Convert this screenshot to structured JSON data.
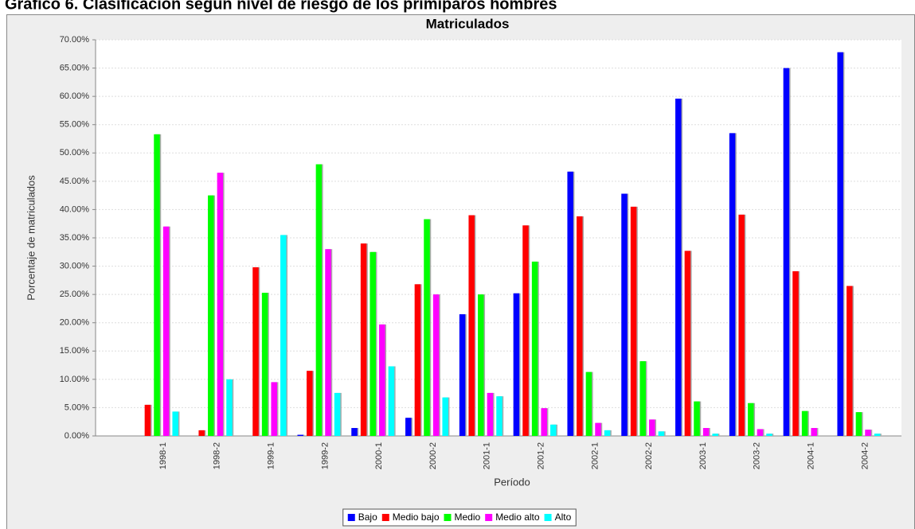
{
  "caption": "Gráfico 6. Clasificación según nivel de riesgo de los primíparos hombres",
  "chart_data": {
    "type": "bar",
    "title": "Matriculados",
    "x_label": "Período",
    "y_label": "Porcentaje de matriculados",
    "categories": [
      "1998-1",
      "1998-2",
      "1999-1",
      "1999-2",
      "2000-1",
      "2000-2",
      "2001-1",
      "2001-2",
      "2002-1",
      "2002-2",
      "2003-1",
      "2003-2",
      "2004-1",
      "2004-2"
    ],
    "series": [
      {
        "name": "Bajo",
        "color": "#0000ff",
        "values": [
          0,
          0,
          0,
          0.2,
          1.4,
          3.2,
          21.5,
          25.2,
          46.7,
          42.8,
          59.6,
          53.5,
          65,
          67.8
        ]
      },
      {
        "name": "Medio bajo",
        "color": "#ff0000",
        "values": [
          5.5,
          1.0,
          29.8,
          11.5,
          34,
          26.8,
          39,
          37.2,
          38.8,
          40.5,
          32.7,
          39.1,
          29.1,
          26.5
        ]
      },
      {
        "name": "Medio",
        "color": "#00ff00",
        "values": [
          53.3,
          42.5,
          25.3,
          48,
          32.5,
          38.3,
          25,
          30.8,
          11.3,
          13.2,
          6.1,
          5.8,
          4.4,
          4.2
        ]
      },
      {
        "name": "Medio alto",
        "color": "#ff00ff",
        "values": [
          37,
          46.5,
          9.5,
          33,
          19.7,
          25,
          7.6,
          4.9,
          2.3,
          2.9,
          1.4,
          1.2,
          1.4,
          1.1
        ]
      },
      {
        "name": "Alto",
        "color": "#00ffff",
        "values": [
          4.3,
          10,
          35.5,
          7.6,
          12.3,
          6.8,
          7,
          2,
          1,
          0.8,
          0.4,
          0.4,
          0,
          0.4
        ]
      }
    ],
    "ylim": [
      0,
      70
    ],
    "yticks": [
      {
        "value": 0,
        "label": "0.00%"
      },
      {
        "value": 5,
        "label": "5.00%"
      },
      {
        "value": 10,
        "label": "10.00%"
      },
      {
        "value": 15,
        "label": "15.00%"
      },
      {
        "value": 20,
        "label": "20.00%"
      },
      {
        "value": 25,
        "label": "25.00%"
      },
      {
        "value": 30,
        "label": "30.00%"
      },
      {
        "value": 35,
        "label": "35.00%"
      },
      {
        "value": 40,
        "label": "40.00%"
      },
      {
        "value": 45,
        "label": "45.00%"
      },
      {
        "value": 50,
        "label": "50.00%"
      },
      {
        "value": 55,
        "label": "55.00%"
      },
      {
        "value": 60,
        "label": "60.00%"
      },
      {
        "value": 65,
        "label": "65.00%"
      },
      {
        "value": 70,
        "label": "70.00%"
      }
    ],
    "grid": true,
    "legend": "bottom"
  }
}
